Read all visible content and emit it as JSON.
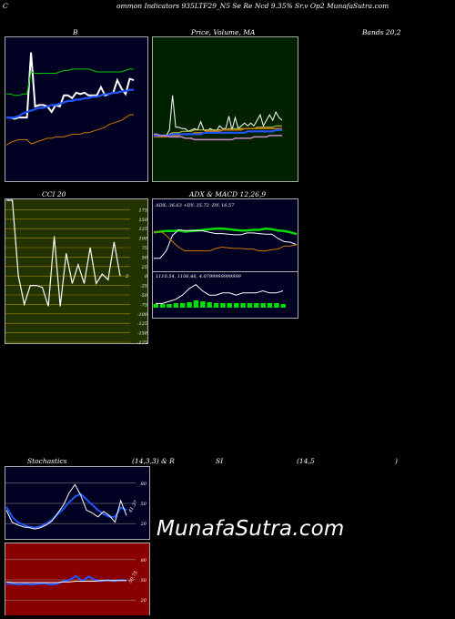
{
  "header": "ommon  Indicators 935LTF29_N5 Se  Re  Ncd 9.35% Sr.v  Op2  MunafaSutra.com",
  "header_c": "C",
  "titles": {
    "bollinger": "B",
    "price_ma": "Price, Volume, MA",
    "bands": "Bands 20,2",
    "cci": "CCI 20",
    "adx_macd": "ADX  & MACD 12,26,9",
    "stochastics": "Stochastics",
    "stoch_params": "(14,3,3) & R",
    "rsi": "SI",
    "rsi_params": "(14,5",
    "rsi_close": ")"
  },
  "watermark": "MunafaSutra.com",
  "colors": {
    "bollinger_bg": "#000022",
    "price_bg": "#002200",
    "cci_bg": "#223300",
    "adx_bg": "#000022",
    "stoch_bg": "#000022",
    "rsi_bg": "#880000",
    "accent_green": "#00dd00",
    "accent_blue": "#2255ff",
    "accent_orange": "#cc7700"
  },
  "chart_data": [
    {
      "id": "bollinger",
      "type": "line",
      "series": [
        {
          "color": "#ffffff",
          "values": [
            44,
            44,
            43,
            44,
            44,
            44,
            91,
            52,
            53,
            53,
            52,
            48,
            53,
            52,
            60,
            60,
            58,
            62,
            61,
            62,
            60,
            60,
            60,
            66,
            60,
            61,
            62,
            71,
            65,
            61,
            72,
            71
          ]
        },
        {
          "color": "#00cc00",
          "values": [
            61,
            61,
            60,
            60,
            61,
            61,
            77,
            76,
            76,
            76,
            76,
            76,
            76,
            77,
            78,
            78,
            79,
            79,
            79,
            79,
            79,
            78,
            77,
            77,
            77,
            77,
            77,
            77,
            77,
            78,
            79,
            79
          ]
        },
        {
          "color": "#2255ff",
          "values": [
            44,
            44,
            44,
            45,
            47,
            48,
            49,
            50,
            51,
            51,
            52,
            53,
            53,
            54,
            55,
            56,
            56,
            57,
            57,
            58,
            58,
            59,
            59,
            60,
            61,
            61,
            62,
            62,
            63,
            63,
            64,
            64
          ]
        },
        {
          "color": "#cc7700",
          "values": [
            24,
            26,
            27,
            28,
            28,
            28,
            25,
            26,
            27,
            28,
            29,
            29,
            30,
            30,
            30,
            31,
            32,
            32,
            32,
            33,
            33,
            34,
            35,
            36,
            37,
            39,
            40,
            41,
            42,
            44,
            46,
            46
          ]
        }
      ],
      "ylim": [
        0,
        100
      ]
    },
    {
      "id": "price_ma",
      "type": "line",
      "series": [
        {
          "color": "#ffffff",
          "values": [
            30,
            30,
            30,
            31,
            31,
            35,
            60,
            37,
            37,
            36,
            36,
            34,
            35,
            36,
            35,
            41,
            35,
            34,
            36,
            35,
            34,
            38,
            36,
            36,
            45,
            35,
            44,
            36,
            38,
            40,
            38,
            40,
            38,
            42,
            46,
            38,
            42,
            46,
            42,
            48,
            44,
            42
          ]
        },
        {
          "color": "#cccc44",
          "values": [
            31,
            31,
            31,
            31,
            31,
            32,
            33,
            33,
            33,
            34,
            34,
            34,
            34,
            35,
            35,
            35,
            35,
            35,
            35,
            35,
            35,
            35,
            35,
            35,
            36,
            36,
            36,
            36,
            36,
            36,
            36,
            36,
            36,
            37,
            37,
            37,
            37,
            37,
            37,
            38,
            38,
            38
          ]
        },
        {
          "color": "#cc7700",
          "values": [
            30,
            30,
            30,
            30,
            30,
            31,
            31,
            31,
            31,
            32,
            32,
            32,
            32,
            33,
            33,
            33,
            33,
            34,
            34,
            34,
            34,
            34,
            35,
            35,
            35,
            35,
            35,
            35,
            35,
            36,
            36,
            36,
            36,
            36,
            36,
            36,
            36,
            36,
            36,
            36,
            36,
            36
          ]
        },
        {
          "color": "#2255ff",
          "values": [
            31,
            31,
            31,
            31,
            31,
            31,
            32,
            32,
            32,
            32,
            32,
            32,
            32,
            32,
            32,
            32,
            33,
            33,
            33,
            33,
            33,
            33,
            33,
            33,
            33,
            33,
            33,
            33,
            33,
            33,
            34,
            34,
            34,
            34,
            34,
            34,
            34,
            34,
            34,
            35,
            35,
            35
          ]
        },
        {
          "color": "#cc88cc",
          "values": [
            32,
            32,
            31,
            31,
            31,
            30,
            30,
            30,
            30,
            30,
            29,
            29,
            29,
            28,
            28,
            28,
            28,
            28,
            28,
            28,
            28,
            28,
            28,
            28,
            28,
            28,
            29,
            29,
            29,
            29,
            29,
            29,
            30,
            30,
            30,
            30,
            30,
            31,
            31,
            31,
            31,
            31
          ]
        }
      ],
      "ylim": [
        0,
        100
      ]
    },
    {
      "id": "cci",
      "type": "line",
      "series": [
        {
          "color": "#ffffff",
          "values": [
            200,
            200,
            0,
            -75,
            -25,
            -25,
            -30,
            -80,
            105,
            -80,
            60,
            -20,
            30,
            -20,
            75,
            -20,
            5,
            -10,
            90,
            0
          ]
        }
      ],
      "y_ticks": [
        175,
        150,
        125,
        100,
        75,
        50,
        25,
        0,
        -25,
        -50,
        -75,
        -100,
        -125,
        -150,
        -175
      ],
      "last_label": "2",
      "ylim": [
        -175,
        200
      ]
    },
    {
      "id": "adx",
      "type": "line",
      "label": "ADX: 36.63  +DY: 35.72  -DY: 16.57",
      "series": [
        {
          "color": "#00dd00",
          "values": [
            60,
            61,
            62,
            62,
            63,
            61,
            62,
            63,
            64,
            65,
            66,
            66,
            65,
            64,
            63,
            63,
            64,
            64,
            66,
            65,
            63,
            62,
            60,
            57
          ]
        },
        {
          "color": "#ffffff",
          "values": [
            18,
            18,
            30,
            55,
            64,
            63,
            63,
            63,
            62,
            60,
            58,
            58,
            57,
            56,
            56,
            59,
            59,
            58,
            57,
            57,
            50,
            45,
            44,
            40
          ]
        },
        {
          "color": "#cc7700",
          "values": [
            60,
            62,
            55,
            45,
            36,
            30,
            30,
            30,
            30,
            30,
            34,
            36,
            35,
            34,
            34,
            33,
            33,
            30,
            30,
            32,
            33,
            38,
            38,
            40
          ]
        }
      ],
      "ylim": [
        0,
        100
      ]
    },
    {
      "id": "macd",
      "type": "bar",
      "label": "1110.54,  1106.46,  4.0799999999999",
      "series": [
        {
          "color": "#ffffff",
          "values": [
            1104,
            1104,
            1105,
            1106,
            1108,
            1111,
            1113,
            1110,
            1108,
            1108,
            1109,
            1109,
            1108,
            1109,
            1109,
            1109,
            1110,
            1109,
            1109,
            1110
          ]
        },
        {
          "color": "#00dd00",
          "values": [
            4,
            4,
            4,
            5,
            5,
            6,
            8,
            7,
            6,
            5,
            5,
            5,
            5,
            5,
            5,
            5,
            5,
            5,
            5,
            4
          ]
        }
      ]
    },
    {
      "id": "stochastics",
      "type": "line",
      "y_ticks": [
        80,
        50,
        20
      ],
      "series": [
        {
          "color": "#2255ff",
          "values": [
            45,
            30,
            22,
            18,
            15,
            14,
            16,
            20,
            26,
            34,
            42,
            52,
            60,
            64,
            56,
            48,
            40,
            34,
            30,
            30,
            44,
            40
          ]
        },
        {
          "color": "#ffffff",
          "values": [
            40,
            22,
            18,
            15,
            14,
            12,
            14,
            18,
            24,
            36,
            48,
            66,
            78,
            62,
            40,
            36,
            30,
            38,
            32,
            22,
            54,
            32
          ]
        }
      ],
      "last_label": "41.37",
      "ylim": [
        0,
        100
      ]
    },
    {
      "id": "rsi",
      "type": "line",
      "y_ticks": [
        80,
        50,
        20
      ],
      "series": [
        {
          "color": "#2255ff",
          "values": [
            44,
            44,
            43,
            44,
            43,
            44,
            45,
            43,
            44,
            48,
            50,
            56,
            48,
            55,
            50,
            48,
            50,
            48,
            50,
            49
          ]
        },
        {
          "color": "#ffffff",
          "values": [
            47,
            46,
            46,
            46,
            46,
            46,
            46,
            46,
            46,
            47,
            47,
            48,
            48,
            48,
            48,
            49,
            49,
            49,
            49,
            49
          ]
        }
      ],
      "last_label": "50.75",
      "ylim": [
        0,
        100
      ]
    }
  ]
}
